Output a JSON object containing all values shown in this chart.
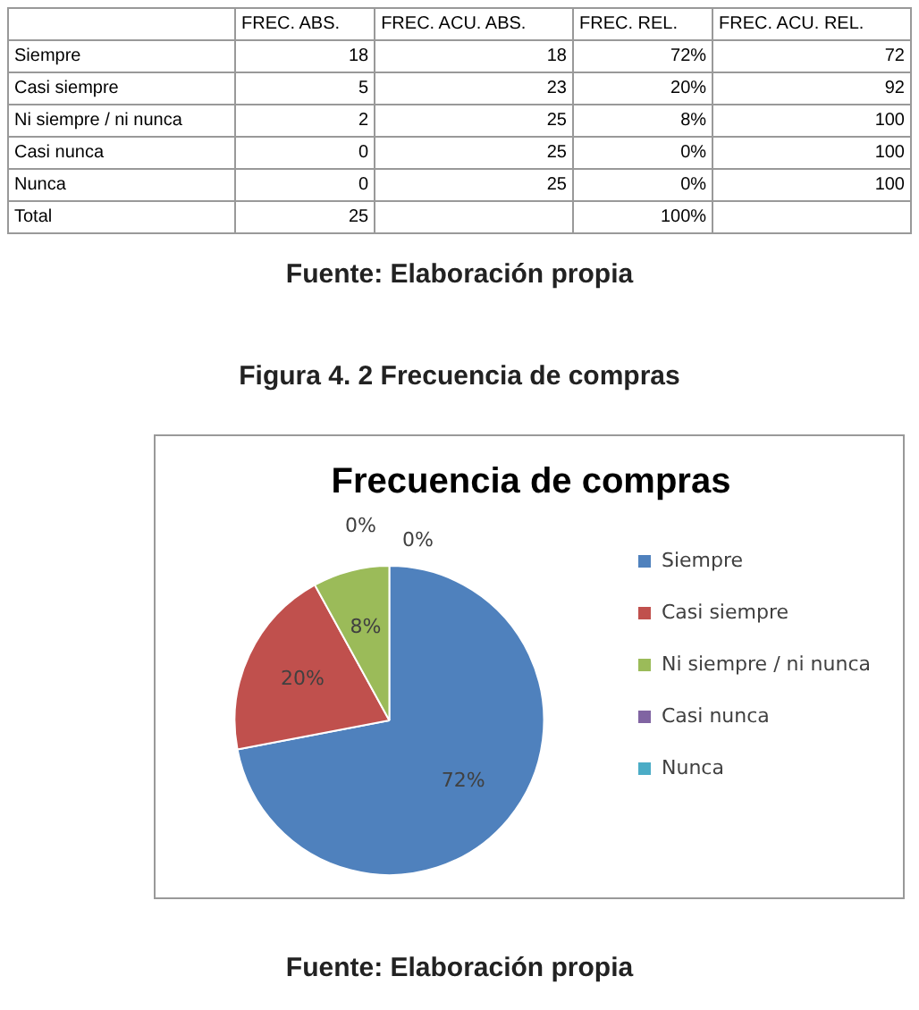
{
  "chart_data": [
    {
      "type": "other",
      "categories": [
        "Siempre",
        "Casi siempre",
        "Ni siempre / ni nunca",
        "Casi nunca",
        "Nunca",
        "Total"
      ],
      "series": [
        {
          "name": "FREC. ABS.",
          "values": [
            18,
            5,
            2,
            0,
            0,
            25
          ]
        },
        {
          "name": "FREC. ACU. ABS.",
          "values": [
            18,
            23,
            25,
            25,
            25,
            null
          ]
        },
        {
          "name": "FREC. REL.",
          "values": [
            72,
            20,
            8,
            0,
            0,
            100
          ],
          "value_labels": [
            "72%",
            "20%",
            "8%",
            "0%",
            "0%",
            "100%"
          ]
        },
        {
          "name": "FREC. ACU. REL.",
          "values": [
            72,
            92,
            100,
            100,
            100,
            null
          ]
        }
      ],
      "data_labels": true,
      "annotations": [
        "Fuente: Elaboración propia"
      ]
    },
    {
      "type": "pie",
      "title": "Frecuencia de compras",
      "categories": [
        "Siempre",
        "Casi siempre",
        "Ni siempre / ni nunca",
        "Casi nunca",
        "Nunca"
      ],
      "values": [
        72,
        20,
        8,
        0,
        0
      ],
      "colors": [
        "#4f81bd",
        "#c0504d",
        "#9bbb59",
        "#8064a2",
        "#4bacc6"
      ],
      "value_labels": [
        "72%",
        "20%",
        "8%",
        "0%",
        "0%"
      ],
      "legend": "right",
      "annotations": [
        "Figura 4. 2 Frecuencia de compras",
        "Fuente: Elaboración propia"
      ]
    }
  ]
}
